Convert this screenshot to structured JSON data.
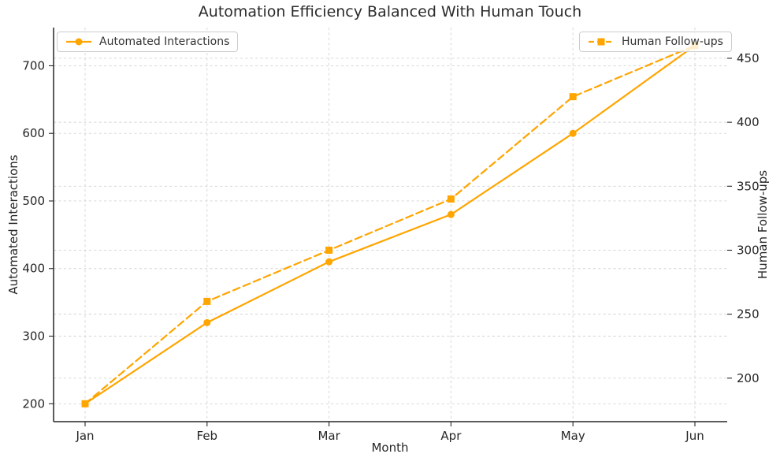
{
  "chart_data": {
    "type": "line",
    "title": "Automation Efficiency Balanced With Human Touch",
    "xlabel": "Month",
    "categories": [
      "Jan",
      "Feb",
      "Mar",
      "Apr",
      "May",
      "Jun"
    ],
    "series": [
      {
        "name": "Automated Interactions",
        "axis": "left",
        "line_style": "solid",
        "marker": "circle",
        "values": [
          200,
          320,
          410,
          480,
          600,
          730
        ]
      },
      {
        "name": "Human Follow-ups",
        "axis": "right",
        "line_style": "dashed",
        "marker": "square",
        "values": [
          180,
          260,
          300,
          340,
          420,
          460
        ]
      }
    ],
    "left_axis": {
      "label": "Automated Interactions",
      "ticks": [
        200,
        300,
        400,
        500,
        600,
        700
      ],
      "range": [
        173.5,
        756.5
      ]
    },
    "right_axis": {
      "label": "Human Follow-ups",
      "ticks": [
        200,
        250,
        300,
        350,
        400,
        450
      ],
      "range": [
        166,
        474
      ]
    },
    "legend": {
      "left_label": "Automated Interactions",
      "right_label": "Human Follow-ups"
    },
    "grid": "dashed, both x and dual y gridlines",
    "colors": {
      "series": "#FFA500",
      "grid": "#cccccc",
      "text": "#262626",
      "spine": "#262626"
    }
  }
}
